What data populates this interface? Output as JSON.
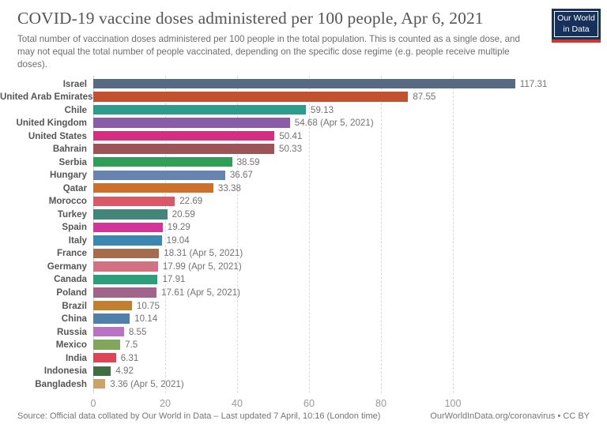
{
  "header": {
    "title": "COVID-19 vaccine doses administered per 100 people, Apr 6, 2021",
    "subtitle": "Total number of vaccination doses administered per 100 people in the total population. This is counted as a single dose, and may not equal the total number of people vaccinated, depending on the specific dose regime (e.g. people receive multiple doses)."
  },
  "logo": {
    "line1": "Our World",
    "line2": "in Data",
    "background": "#15315c",
    "stripe": "#d0352a"
  },
  "chart_data": {
    "type": "bar",
    "orientation": "horizontal",
    "title": "COVID-19 vaccine doses administered per 100 people, Apr 6, 2021",
    "xlabel": "",
    "ylabel": "",
    "xlim": [
      0,
      140
    ],
    "xticks": [
      0,
      20,
      40,
      60,
      80,
      100
    ],
    "grid": "vertical-dashed",
    "categories": [
      "Israel",
      "United Arab Emirates",
      "Chile",
      "United Kingdom",
      "United States",
      "Bahrain",
      "Serbia",
      "Hungary",
      "Qatar",
      "Morocco",
      "Turkey",
      "Spain",
      "Italy",
      "France",
      "Germany",
      "Canada",
      "Poland",
      "Brazil",
      "China",
      "Russia",
      "Mexico",
      "India",
      "Indonesia",
      "Bangladesh"
    ],
    "values": [
      117.31,
      87.55,
      59.13,
      54.68,
      50.41,
      50.33,
      38.59,
      36.67,
      33.38,
      22.69,
      20.59,
      19.29,
      19.04,
      18.31,
      17.99,
      17.91,
      17.61,
      10.75,
      10.14,
      8.55,
      7.5,
      6.31,
      4.92,
      3.36
    ],
    "bars": [
      {
        "country": "Israel",
        "value": 117.31,
        "value_label": "117.31",
        "color": "#566b82"
      },
      {
        "country": "United Arab Emirates",
        "value": 87.55,
        "value_label": "87.55",
        "color": "#c1512f"
      },
      {
        "country": "Chile",
        "value": 59.13,
        "value_label": "59.13",
        "color": "#2c9c8d"
      },
      {
        "country": "United Kingdom",
        "value": 54.68,
        "value_label": "54.68 (Apr 5, 2021)",
        "color": "#8a5ca8"
      },
      {
        "country": "United States",
        "value": 50.41,
        "value_label": "50.41",
        "color": "#d42e82"
      },
      {
        "country": "Bahrain",
        "value": 50.33,
        "value_label": "50.33",
        "color": "#9e5356"
      },
      {
        "country": "Serbia",
        "value": 38.59,
        "value_label": "38.59",
        "color": "#2f9e56"
      },
      {
        "country": "Hungary",
        "value": 36.67,
        "value_label": "36.67",
        "color": "#6783b2"
      },
      {
        "country": "Qatar",
        "value": 33.38,
        "value_label": "33.38",
        "color": "#cc702e"
      },
      {
        "country": "Morocco",
        "value": 22.69,
        "value_label": "22.69",
        "color": "#db5867"
      },
      {
        "country": "Turkey",
        "value": 20.59,
        "value_label": "20.59",
        "color": "#44857a"
      },
      {
        "country": "Spain",
        "value": 19.29,
        "value_label": "19.29",
        "color": "#d23499"
      },
      {
        "country": "Italy",
        "value": 19.04,
        "value_label": "19.04",
        "color": "#3a87b0"
      },
      {
        "country": "France",
        "value": 18.31,
        "value_label": "18.31 (Apr 5, 2021)",
        "color": "#a76c4e"
      },
      {
        "country": "Germany",
        "value": 17.99,
        "value_label": "17.99 (Apr 5, 2021)",
        "color": "#d17182"
      },
      {
        "country": "Canada",
        "value": 17.91,
        "value_label": "17.91",
        "color": "#2c9e78"
      },
      {
        "country": "Poland",
        "value": 17.61,
        "value_label": "17.61 (Apr 5, 2021)",
        "color": "#a1648b"
      },
      {
        "country": "Brazil",
        "value": 10.75,
        "value_label": "10.75",
        "color": "#c2802f"
      },
      {
        "country": "China",
        "value": 10.14,
        "value_label": "10.14",
        "color": "#4f80a7"
      },
      {
        "country": "Russia",
        "value": 8.55,
        "value_label": "8.55",
        "color": "#b873c2"
      },
      {
        "country": "Mexico",
        "value": 7.5,
        "value_label": "7.5",
        "color": "#82a65c"
      },
      {
        "country": "India",
        "value": 6.31,
        "value_label": "6.31",
        "color": "#df4358"
      },
      {
        "country": "Indonesia",
        "value": 4.92,
        "value_label": "4.92",
        "color": "#3f6e43"
      },
      {
        "country": "Bangladesh",
        "value": 3.36,
        "value_label": "3.36 (Apr 5, 2021)",
        "color": "#cba36a"
      }
    ]
  },
  "footer": {
    "source": "Source: Official data collated by Our World in Data – Last updated 7 April, 10:16 (London time)",
    "link": "OurWorldInData.org/coronavirus • CC BY"
  }
}
